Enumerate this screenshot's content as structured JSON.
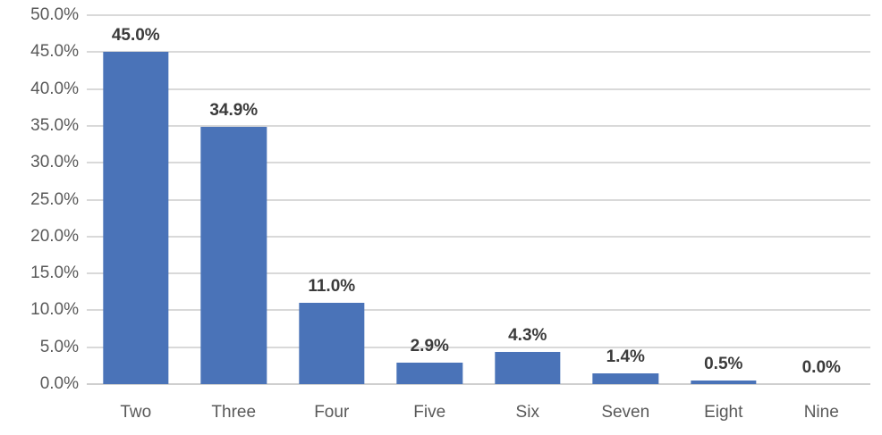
{
  "chart_data": {
    "type": "bar",
    "title": "",
    "xlabel": "",
    "ylabel": "",
    "categories": [
      "Two",
      "Three",
      "Four",
      "Five",
      "Six",
      "Seven",
      "Eight",
      "Nine"
    ],
    "values": [
      45.0,
      34.9,
      11.0,
      2.9,
      4.3,
      1.4,
      0.5,
      0.0
    ],
    "data_labels": [
      "45.0%",
      "34.9%",
      "11.0%",
      "2.9%",
      "4.3%",
      "1.4%",
      "0.5%",
      "0.0%"
    ],
    "ytick_labels": [
      "0.0%",
      "5.0%",
      "10.0%",
      "15.0%",
      "20.0%",
      "25.0%",
      "30.0%",
      "35.0%",
      "40.0%",
      "45.0%",
      "50.0%"
    ],
    "ylim": [
      0,
      50
    ],
    "grid": true,
    "legend": false,
    "colors": {
      "bar": "#4a73b8",
      "gridline": "#d9d9d9",
      "axis_line": "#cfcfcf",
      "tick_label": "#595959",
      "data_label": "#3b3b3b"
    }
  }
}
